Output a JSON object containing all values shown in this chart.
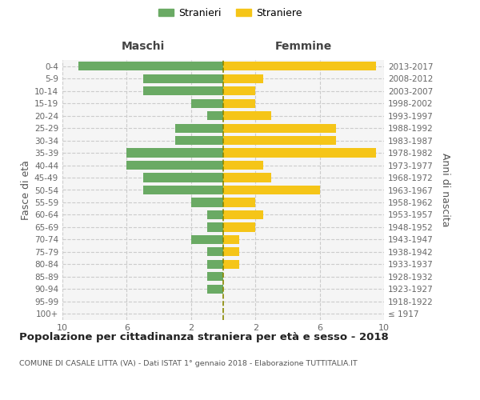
{
  "age_groups": [
    "100+",
    "95-99",
    "90-94",
    "85-89",
    "80-84",
    "75-79",
    "70-74",
    "65-69",
    "60-64",
    "55-59",
    "50-54",
    "45-49",
    "40-44",
    "35-39",
    "30-34",
    "25-29",
    "20-24",
    "15-19",
    "10-14",
    "5-9",
    "0-4"
  ],
  "birth_years": [
    "≤ 1917",
    "1918-1922",
    "1923-1927",
    "1928-1932",
    "1933-1937",
    "1938-1942",
    "1943-1947",
    "1948-1952",
    "1953-1957",
    "1958-1962",
    "1963-1967",
    "1968-1972",
    "1973-1977",
    "1978-1982",
    "1983-1987",
    "1988-1992",
    "1993-1997",
    "1998-2002",
    "2003-2007",
    "2008-2012",
    "2013-2017"
  ],
  "maschi": [
    0,
    0,
    1,
    1,
    1,
    1,
    2,
    1,
    1,
    2,
    5,
    5,
    6,
    6,
    3,
    3,
    1,
    2,
    5,
    5,
    9
  ],
  "femmine": [
    0,
    0,
    0,
    0,
    1,
    1,
    1,
    2,
    2.5,
    2,
    6,
    3,
    2.5,
    9.5,
    7,
    7,
    3,
    2,
    2,
    2.5,
    9.5
  ],
  "maschi_color": "#6aaa64",
  "femmine_color": "#f5c518",
  "center_line_color": "#888800",
  "grid_color": "#cccccc",
  "bg_color": "#f5f5f5",
  "xlim": 10,
  "title": "Popolazione per cittadinanza straniera per età e sesso - 2018",
  "subtitle": "COMUNE DI CASALE LITTA (VA) - Dati ISTAT 1° gennaio 2018 - Elaborazione TUTTITALIA.IT",
  "ylabel_left": "Fasce di età",
  "ylabel_right": "Anni di nascita",
  "header_maschi": "Maschi",
  "header_femmine": "Femmine",
  "legend_stranieri": "Stranieri",
  "legend_straniere": "Straniere"
}
